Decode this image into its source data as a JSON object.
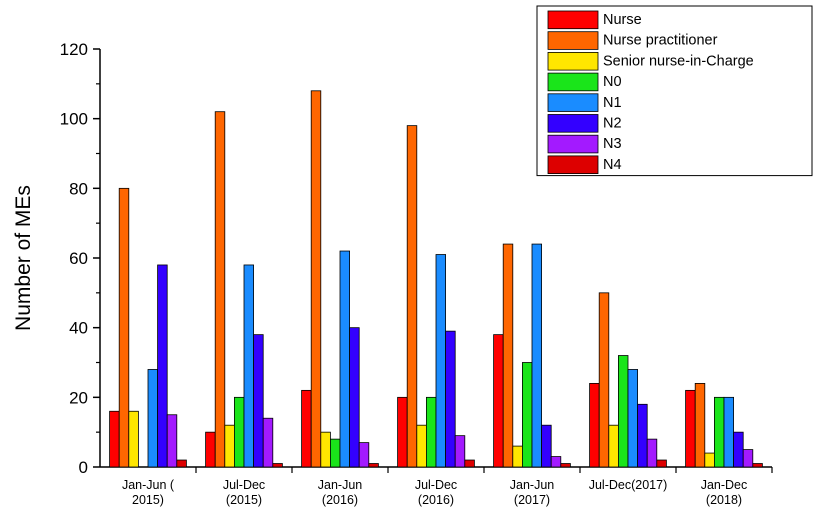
{
  "chart_data": {
    "type": "bar",
    "title": "",
    "xlabel": "",
    "ylabel": "Number of MEs",
    "ylim": [
      0,
      120
    ],
    "yticks": [
      0,
      20,
      40,
      60,
      80,
      100,
      120
    ],
    "grid": false,
    "legend_position": "top-right",
    "categories": [
      [
        "Jan-Jun (",
        "2015)"
      ],
      [
        "Jul-Dec",
        "(2015)"
      ],
      [
        "Jan-Jun",
        "(2016)"
      ],
      [
        "Jul-Dec",
        "(2016)"
      ],
      [
        "Jan-Jun",
        "(2017)"
      ],
      [
        "Jul-Dec(2017)"
      ],
      [
        "Jan-Dec",
        "(2018)"
      ]
    ],
    "series": [
      {
        "name": "Nurse",
        "color": "#ff0000",
        "values": [
          16,
          10,
          22,
          20,
          38,
          24,
          22
        ]
      },
      {
        "name": "Nurse practitioner",
        "color": "#ff6600",
        "values": [
          80,
          102,
          108,
          98,
          64,
          50,
          24
        ]
      },
      {
        "name": "Senior nurse-in-Charge",
        "color": "#ffe600",
        "values": [
          16,
          12,
          10,
          12,
          6,
          12,
          4
        ]
      },
      {
        "name": "N0",
        "color": "#1ae51a",
        "values": [
          0,
          20,
          8,
          20,
          30,
          32,
          20
        ]
      },
      {
        "name": "N1",
        "color": "#1a8cff",
        "values": [
          28,
          58,
          62,
          61,
          64,
          28,
          20
        ]
      },
      {
        "name": "N2",
        "color": "#3300ff",
        "values": [
          58,
          38,
          40,
          39,
          12,
          18,
          10
        ]
      },
      {
        "name": "N3",
        "color": "#a31aff",
        "values": [
          15,
          14,
          7,
          9,
          3,
          8,
          5
        ]
      },
      {
        "name": "N4",
        "color": "#dd0000",
        "values": [
          2,
          1,
          1,
          2,
          1,
          2,
          1
        ]
      }
    ]
  }
}
